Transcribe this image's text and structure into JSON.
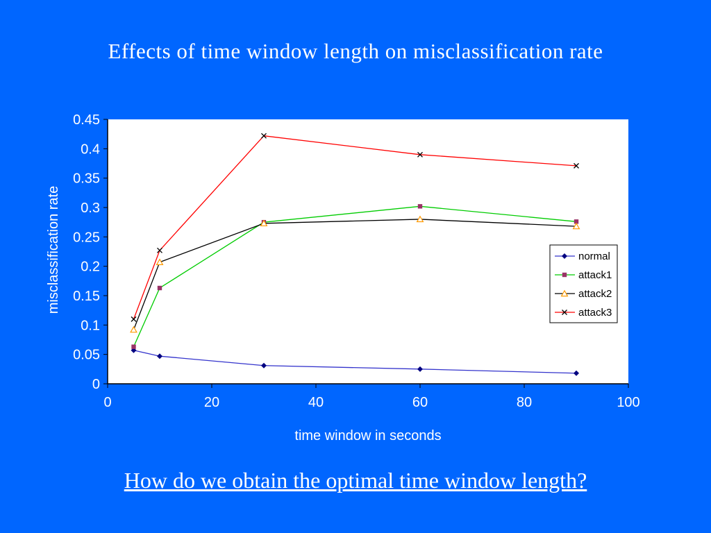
{
  "slide": {
    "title": "Effects of time window length on misclassification rate",
    "question": "How do we obtain the optimal time window length?"
  },
  "colors": {
    "background": "#0066ff",
    "text": "#ffffff",
    "plot_background": "#ffffff",
    "axis": "#000000"
  },
  "chart_data": {
    "type": "line",
    "title": "",
    "xlabel": "time window in seconds",
    "ylabel": "misclassification rate",
    "xlim": [
      0,
      100
    ],
    "ylim": [
      0,
      0.45
    ],
    "x_ticks": [
      0,
      20,
      40,
      60,
      80,
      100
    ],
    "y_ticks": [
      0,
      0.05,
      0.1,
      0.15,
      0.2,
      0.25,
      0.3,
      0.35,
      0.4,
      0.45
    ],
    "grid": false,
    "tick_label_color": "#ffffff",
    "legend_position": "right-inside",
    "x": [
      5,
      10,
      30,
      60,
      90
    ],
    "series": [
      {
        "name": "normal",
        "values": [
          0.057,
          0.047,
          0.031,
          0.025,
          0.018
        ],
        "line_color": "#3333cc",
        "marker": "diamond",
        "marker_color": "#000080"
      },
      {
        "name": "attack1",
        "values": [
          0.063,
          0.163,
          0.275,
          0.302,
          0.276
        ],
        "line_color": "#00cc00",
        "marker": "square",
        "marker_color": "#993366"
      },
      {
        "name": "attack2",
        "values": [
          0.092,
          0.207,
          0.273,
          0.28,
          0.268
        ],
        "line_color": "#000000",
        "marker": "triangle-open",
        "marker_color": "#ff9900"
      },
      {
        "name": "attack3",
        "values": [
          0.11,
          0.227,
          0.422,
          0.39,
          0.371
        ],
        "line_color": "#ff0000",
        "marker": "x",
        "marker_color": "#000000"
      }
    ]
  }
}
